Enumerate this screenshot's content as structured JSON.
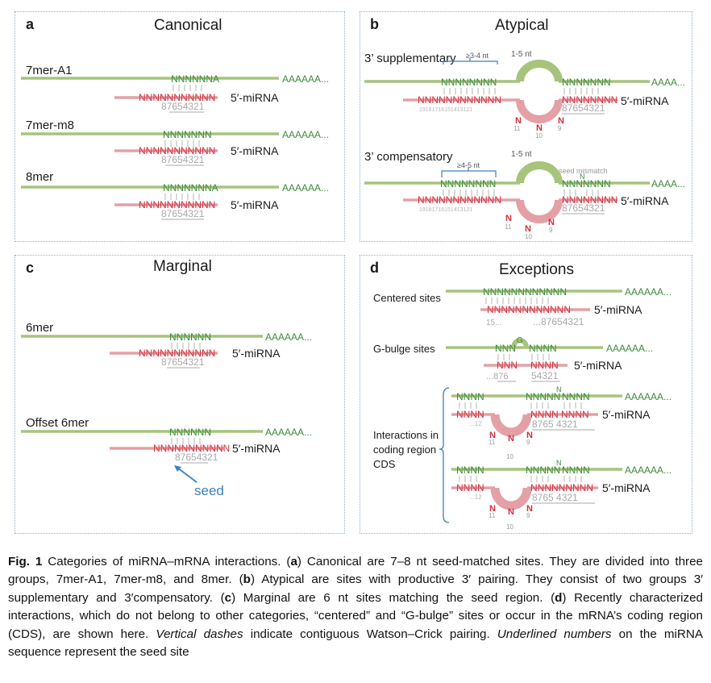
{
  "colors": {
    "mrna": "#a6c47c",
    "mirna": "#e4a0a5",
    "mrna_text": "#3e8a3e",
    "mirna_text": "#d3303d",
    "numbers": "#a8a8a8",
    "bracket": "#3c7fc0",
    "seed_text": "#3c7fc0",
    "border": "#8aaecd"
  },
  "panels": {
    "a": {
      "letter": "a",
      "title": "Canonical",
      "rows": [
        {
          "label": "7mer-A1",
          "mrna": "NNNNNNA",
          "tail": "AAAAAA...",
          "mirna": "NNNNNNNNNNN",
          "mirna5": "5′-miRNA",
          "numbers": "87654321"
        },
        {
          "label": "7mer-m8",
          "mrna": "NNNNNNN",
          "tail": "AAAAAA...",
          "mirna": "NNNNNNNNNNN",
          "mirna5": "5′-miRNA",
          "numbers": "87654321"
        },
        {
          "label": "8mer",
          "mrna": "NNNNNNNA",
          "tail": "AAAAAA...",
          "mirna": "NNNNNNNNNNN",
          "mirna5": "5′-miRNA",
          "numbers": "87654321"
        }
      ]
    },
    "b": {
      "letter": "b",
      "title": "Atypical",
      "supp": {
        "label": "3’ supplementary",
        "gap": "≥3-4 nt",
        "loop": "1-5 nt",
        "mrna_left": "NNNNNNNN",
        "mrna_right": "NNNNNNN",
        "tail": "AAAA...",
        "mirna": "NNNNNNNNNNNN",
        "mirna_right": "NNNNNNNN",
        "mirna5": "5′-miRNA",
        "numbers": "87654321",
        "small_numbers": "19181716151413121",
        "bulge_n1": "N",
        "bulge_n2": "N",
        "bulge_n3": "N",
        "bulge_num1": "11",
        "bulge_num2": "10",
        "bulge_num3": "9"
      },
      "comp": {
        "label": "3’ compensatory",
        "gap": "≥4-5 nt",
        "loop": "1-5 nt",
        "mismatch": "seed mismatch",
        "mrna_left": "NNNNNNNN",
        "mrna_right": "NNNNNNN",
        "mismatch_n": "N",
        "tail": "AAAA...",
        "mirna": "NNNNNNNNNNNN",
        "mirna_right": "NNNNNNNN",
        "mirna5": "5′-miRNA",
        "numbers": "87654321",
        "small_numbers": "19181716151413121",
        "bulge_n1": "N",
        "bulge_n2": "N",
        "bulge_n3": "N",
        "bulge_num1": "11",
        "bulge_num2": "10",
        "bulge_num3": "9"
      }
    },
    "c": {
      "letter": "c",
      "title": "Marginal",
      "rows": [
        {
          "label": "6mer",
          "mrna": "NNNNNN",
          "tail": "AAAAAA...",
          "mirna": "NNNNNNNNNNN",
          "mirna5": "5′-miRNA",
          "numbers": "87654321"
        },
        {
          "label": "Offset 6mer",
          "mrna": "NNNNNN",
          "tail": "AAAAAA...",
          "mirna": "NNNNNNNNNNN",
          "mirna5": "5′-miRNA",
          "numbers": "87654321"
        }
      ],
      "seed": "seed"
    },
    "d": {
      "letter": "d",
      "title": "Exceptions",
      "centered": {
        "label": "Centered sites",
        "mrna": "NNNNNNNNNNNN",
        "tail": "AAAAAA...",
        "mirna": "NNNNNNNNNNNN",
        "mirna5": "5′-miRNA",
        "num_left": "15...",
        "num_right": "...87654321"
      },
      "gbulge": {
        "label": "G-bulge sites",
        "mrna_left": "NNN",
        "g": "G",
        "mrna_right": "NNNN",
        "tail": "AAAAAA...",
        "mirna_left": "NNN",
        "mirna_right": "NNNN",
        "mirna5": "5′-miRNA",
        "num_left": "...876",
        "num_right": "54321"
      },
      "cds_label": [
        "Interactions in",
        "coding region",
        "CDS"
      ],
      "cds1": {
        "mrna_left": "NNNN",
        "mrna_mid": "NNNNN",
        "n_up": "N",
        "mrna_right": "NNNN",
        "tail": "AAAAAA...",
        "mirna_left": "NNNN",
        "mirna_right": "NNNN  NNNN",
        "mirna5": "5′-miRNA",
        "num_left": "...12",
        "num_right": "8765  4321",
        "bulge_n1": "N",
        "bulge_n2": "N",
        "bulge_n3": "N",
        "bulge_num1": "11",
        "bulge_num2": "10",
        "bulge_num3": "9"
      },
      "cds2": {
        "mrna_left": "NNNN",
        "mrna_mid": "NNNNN",
        "n_up": "N",
        "mrna_right": "NNNN",
        "tail": "AAAAAA...",
        "mirna_left": "NNNN",
        "mirna_right": "NNNNNNNNN",
        "mirna5": "5′-miRNA",
        "num_left": "...12",
        "num_right": "8765  4321",
        "bulge_n1": "N",
        "bulge_n2": "N",
        "bulge_n3": "N",
        "bulge_num1": "11",
        "bulge_num2": "10",
        "bulge_num3": "9"
      }
    }
  },
  "caption": {
    "fig_label": "Fig. 1",
    "s1": " Categories of miRNA–mRNA interactions. (",
    "a": "a",
    "s2": ") Canonical are 7–8 nt seed-matched sites. They are divided into three groups, 7mer-A1, 7mer-m8, and 8mer. (",
    "b": "b",
    "s3": ") Atypical are sites with productive 3′ pairing. They consist of two groups 3′ supplementary and 3′compensatory. (",
    "c": "c",
    "s4": ") Marginal are 6 nt sites matching the seed region. (",
    "d": "d",
    "s5": ") Recently characterized interactions, which do not belong to other categories, “centered” and “G-bulge” sites or occur in the mRNA’s coding region (CDS), are shown here. ",
    "vd": "Vertical dashes",
    "s6": " indicate contiguous Watson–Crick pairing. ",
    "un": "Underlined numbers",
    "s7": " on the miRNA sequence represent the seed site"
  }
}
